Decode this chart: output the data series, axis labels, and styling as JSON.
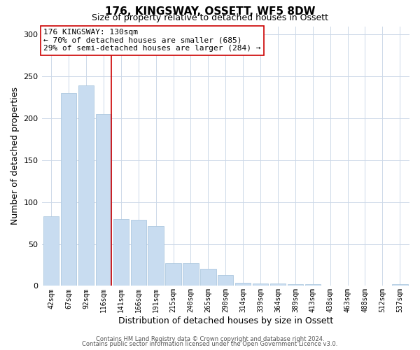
{
  "title": "176, KINGSWAY, OSSETT, WF5 8DW",
  "subtitle": "Size of property relative to detached houses in Ossett",
  "xlabel": "Distribution of detached houses by size in Ossett",
  "ylabel": "Number of detached properties",
  "categories": [
    "42sqm",
    "67sqm",
    "92sqm",
    "116sqm",
    "141sqm",
    "166sqm",
    "191sqm",
    "215sqm",
    "240sqm",
    "265sqm",
    "290sqm",
    "314sqm",
    "339sqm",
    "364sqm",
    "389sqm",
    "413sqm",
    "438sqm",
    "463sqm",
    "488sqm",
    "512sqm",
    "537sqm"
  ],
  "values": [
    83,
    230,
    239,
    205,
    80,
    79,
    71,
    27,
    27,
    20,
    13,
    4,
    3,
    3,
    2,
    2,
    0,
    0,
    0,
    0,
    2
  ],
  "bar_color": "#c8dcf0",
  "bar_edge_color": "#aec8e0",
  "ref_line_color": "#cc0000",
  "ref_line_index": 3,
  "annotation_text": "176 KINGSWAY: 130sqm\n← 70% of detached houses are smaller (685)\n29% of semi-detached houses are larger (284) →",
  "annotation_box_color": "#ffffff",
  "annotation_box_edge": "#cc0000",
  "ylim": [
    0,
    310
  ],
  "yticks": [
    0,
    50,
    100,
    150,
    200,
    250,
    300
  ],
  "footer1": "Contains HM Land Registry data © Crown copyright and database right 2024.",
  "footer2": "Contains public sector information licensed under the Open Government Licence v3.0.",
  "bg_color": "#ffffff",
  "grid_color": "#ccd8e8",
  "title_fontsize": 11,
  "subtitle_fontsize": 9,
  "axis_label_fontsize": 8,
  "tick_fontsize": 7,
  "annotation_fontsize": 8,
  "footer_fontsize": 6
}
